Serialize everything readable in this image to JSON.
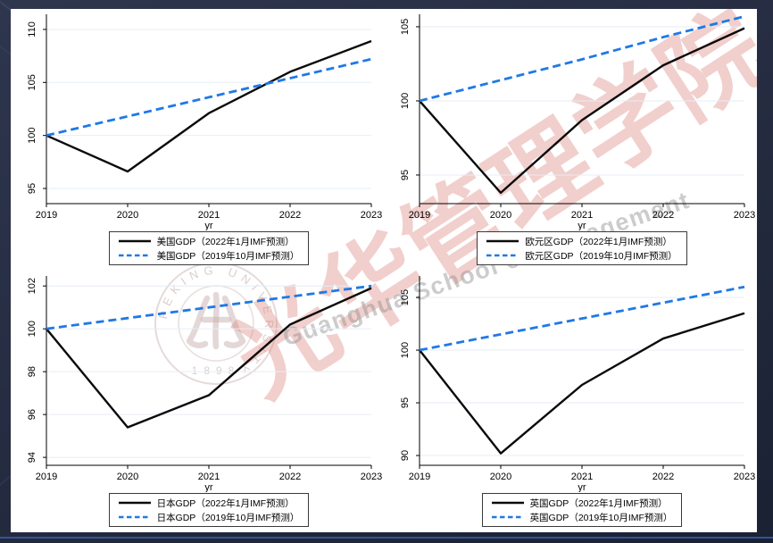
{
  "page": {
    "background_color": "#262d42",
    "accent_line_color": "#3a5aa8",
    "sheet_color": "#ffffff"
  },
  "watermark": {
    "calligraphy": "光华管理学院",
    "english": "Guanghua School of Management",
    "seal_ring_text": "PEKING UNIVERSITY",
    "seal_year": "1898"
  },
  "style": {
    "solid_color": "#0a0a0a",
    "dashed_color": "#1f79e6",
    "grid_color": "#e6eef5",
    "axis_color": "#000000"
  },
  "chart_data": [
    {
      "type": "line",
      "title": "美国GDP",
      "xlabel": "yr",
      "x": [
        2019,
        2020,
        2021,
        2022,
        2023
      ],
      "xticks": [
        2019,
        2020,
        2021,
        2022,
        2023
      ],
      "yticks": [
        95,
        100,
        105,
        110
      ],
      "ylim": [
        93.57,
        111.09
      ],
      "legend_position": "bottom",
      "grid": true,
      "series": [
        {
          "name": "美国GDP（2022年1月IMF预测）",
          "line": "solid",
          "color": "#0a0a0a",
          "values": [
            100,
            96.6,
            102.1,
            106.0,
            108.9
          ]
        },
        {
          "name": "美国GDP（2019年10月IMF预测）",
          "line": "dashed",
          "color": "#1f79e6",
          "values": [
            100,
            101.8,
            103.6,
            105.4,
            107.2
          ]
        }
      ]
    },
    {
      "type": "line",
      "title": "欧元区GDP",
      "xlabel": "yr",
      "x": [
        2019,
        2020,
        2021,
        2022,
        2023
      ],
      "xticks": [
        2019,
        2020,
        2021,
        2022,
        2023
      ],
      "yticks": [
        95,
        100,
        105
      ],
      "ylim": [
        93.07,
        105.6
      ],
      "legend_position": "bottom",
      "grid": true,
      "series": [
        {
          "name": "欧元区GDP（2022年1月IMF预测）",
          "line": "solid",
          "color": "#0a0a0a",
          "values": [
            100,
            93.8,
            98.7,
            102.4,
            104.9
          ]
        },
        {
          "name": "欧元区GDP（2019年10月IMF预测）",
          "line": "dashed",
          "color": "#1f79e6",
          "values": [
            100,
            101.4,
            102.8,
            104.3,
            105.7
          ]
        }
      ]
    },
    {
      "type": "line",
      "title": "日本GDP",
      "xlabel": "yr",
      "x": [
        2019,
        2020,
        2021,
        2022,
        2023
      ],
      "xticks": [
        2019,
        2020,
        2021,
        2022,
        2023
      ],
      "yticks": [
        94,
        96,
        98,
        100,
        102
      ],
      "ylim": [
        93.63,
        102.3
      ],
      "legend_position": "bottom",
      "grid": true,
      "series": [
        {
          "name": "日本GDP（2022年1月IMF预测）",
          "line": "solid",
          "color": "#0a0a0a",
          "values": [
            100,
            95.4,
            96.9,
            100.2,
            101.9
          ]
        },
        {
          "name": "日本GDP（2019年10月IMF预测）",
          "line": "dashed",
          "color": "#1f79e6",
          "values": [
            100,
            100.5,
            101.0,
            101.5,
            102.0
          ]
        }
      ]
    },
    {
      "type": "line",
      "title": "英国GDP",
      "xlabel": "yr",
      "x": [
        2019,
        2020,
        2021,
        2022,
        2023
      ],
      "xticks": [
        2019,
        2020,
        2021,
        2022,
        2023
      ],
      "yticks": [
        90,
        95,
        100,
        105
      ],
      "ylim": [
        89.07,
        106.7
      ],
      "legend_position": "bottom",
      "grid": true,
      "series": [
        {
          "name": "英国GDP（2022年1月IMF预测）",
          "line": "solid",
          "color": "#0a0a0a",
          "values": [
            100,
            90.2,
            96.7,
            101.1,
            103.5
          ]
        },
        {
          "name": "英国GDP（2019年10月IMF预测）",
          "line": "dashed",
          "color": "#1f79e6",
          "values": [
            100,
            101.5,
            103.0,
            104.5,
            106.0
          ]
        }
      ]
    }
  ]
}
